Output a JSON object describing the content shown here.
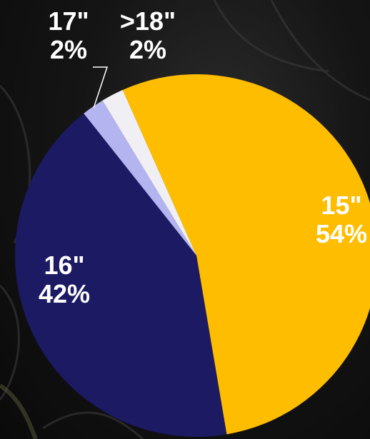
{
  "chart_data": {
    "type": "pie",
    "categories": [
      "15\"",
      "16\"",
      "17\"",
      ">18\""
    ],
    "values": [
      54,
      42,
      2,
      2
    ],
    "value_labels": [
      "54%",
      "42%",
      "2%",
      "2%"
    ],
    "colors": [
      "#ffbd00",
      "#1c1a63",
      "#b4b4f0",
      "#f0f0f4"
    ],
    "label_color": "#ffffff",
    "legend": "none"
  }
}
